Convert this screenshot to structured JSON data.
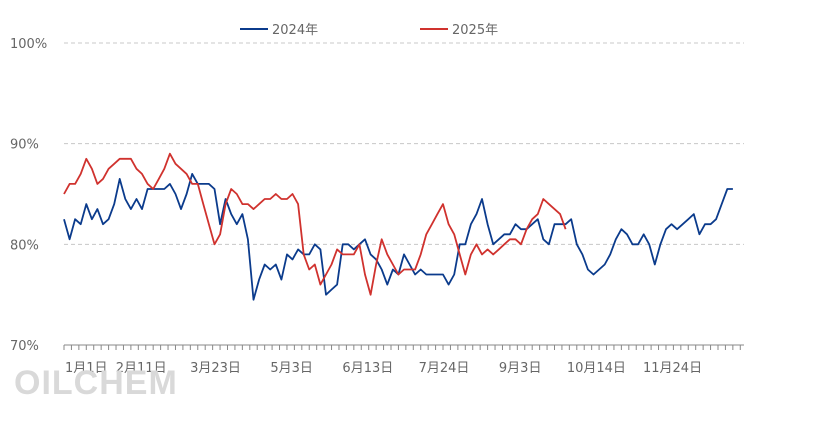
{
  "chart_data": {
    "type": "line",
    "title": "",
    "xlabel": "",
    "ylabel": "",
    "ylim": [
      70,
      100
    ],
    "y_ticks": [
      "70%",
      "80%",
      "90%",
      "100%"
    ],
    "x_ticks": [
      "1月1日",
      "2月11日",
      "3月23日",
      "5月3日",
      "6月13日",
      "7月24日",
      "9月3日",
      "10月14日",
      "11月24日"
    ],
    "x_tick_days": [
      0,
      41,
      81,
      122,
      163,
      204,
      245,
      286,
      327
    ],
    "grid": true,
    "legend_position": "top-center",
    "watermark": "OILCHEM",
    "series": [
      {
        "name": "2024年",
        "color": "#0b3b8c",
        "points": [
          [
            0,
            82.5
          ],
          [
            3,
            80.5
          ],
          [
            6,
            82.5
          ],
          [
            9,
            82
          ],
          [
            12,
            84
          ],
          [
            15,
            82.5
          ],
          [
            18,
            83.5
          ],
          [
            21,
            82
          ],
          [
            24,
            82.5
          ],
          [
            27,
            84
          ],
          [
            30,
            86.5
          ],
          [
            33,
            84.5
          ],
          [
            36,
            83.5
          ],
          [
            39,
            84.5
          ],
          [
            42,
            83.5
          ],
          [
            45,
            85.5
          ],
          [
            48,
            85.5
          ],
          [
            51,
            85.5
          ],
          [
            54,
            85.5
          ],
          [
            57,
            86
          ],
          [
            60,
            85
          ],
          [
            63,
            83.5
          ],
          [
            66,
            85
          ],
          [
            69,
            87
          ],
          [
            72,
            86
          ],
          [
            75,
            86
          ],
          [
            78,
            86
          ],
          [
            81,
            85.5
          ],
          [
            84,
            82
          ],
          [
            87,
            84.5
          ],
          [
            90,
            83
          ],
          [
            93,
            82
          ],
          [
            96,
            83
          ],
          [
            99,
            80.5
          ],
          [
            102,
            74.5
          ],
          [
            105,
            76.5
          ],
          [
            108,
            78
          ],
          [
            111,
            77.5
          ],
          [
            114,
            78
          ],
          [
            117,
            76.5
          ],
          [
            120,
            79
          ],
          [
            123,
            78.5
          ],
          [
            126,
            79.5
          ],
          [
            129,
            79
          ],
          [
            132,
            79
          ],
          [
            135,
            80
          ],
          [
            138,
            79.5
          ],
          [
            141,
            75
          ],
          [
            144,
            75.5
          ],
          [
            147,
            76
          ],
          [
            150,
            80
          ],
          [
            153,
            80
          ],
          [
            156,
            79.5
          ],
          [
            159,
            80
          ],
          [
            162,
            80.5
          ],
          [
            165,
            79
          ],
          [
            168,
            78.5
          ],
          [
            171,
            77.5
          ],
          [
            174,
            76
          ],
          [
            177,
            77.5
          ],
          [
            180,
            77
          ],
          [
            183,
            79
          ],
          [
            186,
            78
          ],
          [
            189,
            77
          ],
          [
            192,
            77.5
          ],
          [
            195,
            77
          ],
          [
            198,
            77
          ],
          [
            201,
            77
          ],
          [
            204,
            77
          ],
          [
            207,
            76
          ],
          [
            210,
            77
          ],
          [
            213,
            80
          ],
          [
            216,
            80
          ],
          [
            219,
            82
          ],
          [
            222,
            83
          ],
          [
            225,
            84.5
          ],
          [
            228,
            82
          ],
          [
            231,
            80
          ],
          [
            234,
            80.5
          ],
          [
            237,
            81
          ],
          [
            240,
            81
          ],
          [
            243,
            82
          ],
          [
            246,
            81.5
          ],
          [
            249,
            81.5
          ],
          [
            252,
            82
          ],
          [
            255,
            82.5
          ],
          [
            258,
            80.5
          ],
          [
            261,
            80
          ],
          [
            264,
            82
          ],
          [
            267,
            82
          ],
          [
            270,
            82
          ],
          [
            273,
            82.5
          ],
          [
            276,
            80
          ],
          [
            279,
            79
          ],
          [
            282,
            77.5
          ],
          [
            285,
            77
          ],
          [
            288,
            77.5
          ],
          [
            291,
            78
          ],
          [
            294,
            79
          ],
          [
            297,
            80.5
          ],
          [
            300,
            81.5
          ],
          [
            303,
            81
          ],
          [
            306,
            80
          ],
          [
            309,
            80
          ],
          [
            312,
            81
          ],
          [
            315,
            80
          ],
          [
            318,
            78
          ],
          [
            321,
            80
          ],
          [
            324,
            81.5
          ],
          [
            327,
            82
          ],
          [
            330,
            81.5
          ],
          [
            333,
            82
          ],
          [
            336,
            82.5
          ],
          [
            339,
            83
          ],
          [
            342,
            81
          ],
          [
            345,
            82
          ],
          [
            348,
            82
          ],
          [
            351,
            82.5
          ],
          [
            354,
            84
          ],
          [
            357,
            85.5
          ],
          [
            360,
            85.5
          ]
        ]
      },
      {
        "name": "2025年",
        "color": "#d0322e",
        "points": [
          [
            0,
            85
          ],
          [
            3,
            86
          ],
          [
            6,
            86
          ],
          [
            9,
            87
          ],
          [
            12,
            88.5
          ],
          [
            15,
            87.5
          ],
          [
            18,
            86
          ],
          [
            21,
            86.5
          ],
          [
            24,
            87.5
          ],
          [
            27,
            88
          ],
          [
            30,
            88.5
          ],
          [
            33,
            88.5
          ],
          [
            36,
            88.5
          ],
          [
            39,
            87.5
          ],
          [
            42,
            87
          ],
          [
            45,
            86
          ],
          [
            48,
            85.5
          ],
          [
            51,
            86.5
          ],
          [
            54,
            87.5
          ],
          [
            57,
            89
          ],
          [
            60,
            88
          ],
          [
            63,
            87.5
          ],
          [
            66,
            87
          ],
          [
            69,
            86
          ],
          [
            72,
            86
          ],
          [
            75,
            84
          ],
          [
            78,
            82
          ],
          [
            81,
            80
          ],
          [
            84,
            81
          ],
          [
            87,
            84
          ],
          [
            90,
            85.5
          ],
          [
            93,
            85
          ],
          [
            96,
            84
          ],
          [
            99,
            84
          ],
          [
            102,
            83.5
          ],
          [
            105,
            84
          ],
          [
            108,
            84.5
          ],
          [
            111,
            84.5
          ],
          [
            114,
            85
          ],
          [
            117,
            84.5
          ],
          [
            120,
            84.5
          ],
          [
            123,
            85
          ],
          [
            126,
            84
          ],
          [
            129,
            79
          ],
          [
            132,
            77.5
          ],
          [
            135,
            78
          ],
          [
            138,
            76
          ],
          [
            141,
            77
          ],
          [
            144,
            78
          ],
          [
            147,
            79.5
          ],
          [
            150,
            79
          ],
          [
            153,
            79
          ],
          [
            156,
            79
          ],
          [
            159,
            80
          ],
          [
            162,
            77
          ],
          [
            165,
            75
          ],
          [
            168,
            78
          ],
          [
            171,
            80.5
          ],
          [
            174,
            79
          ],
          [
            177,
            78
          ],
          [
            180,
            77
          ],
          [
            183,
            77.5
          ],
          [
            186,
            77.5
          ],
          [
            189,
            77.5
          ],
          [
            192,
            79
          ],
          [
            195,
            81
          ],
          [
            198,
            82
          ],
          [
            201,
            83
          ],
          [
            204,
            84
          ],
          [
            207,
            82
          ],
          [
            210,
            81
          ],
          [
            213,
            79
          ],
          [
            216,
            77
          ],
          [
            219,
            79
          ],
          [
            222,
            80
          ],
          [
            225,
            79
          ],
          [
            228,
            79.5
          ],
          [
            231,
            79
          ],
          [
            234,
            79.5
          ],
          [
            237,
            80
          ],
          [
            240,
            80.5
          ],
          [
            243,
            80.5
          ],
          [
            246,
            80
          ],
          [
            249,
            81.5
          ],
          [
            252,
            82.5
          ],
          [
            255,
            83
          ],
          [
            258,
            84.5
          ],
          [
            261,
            84
          ],
          [
            264,
            83.5
          ],
          [
            267,
            83
          ],
          [
            270,
            81.5
          ]
        ]
      }
    ]
  }
}
